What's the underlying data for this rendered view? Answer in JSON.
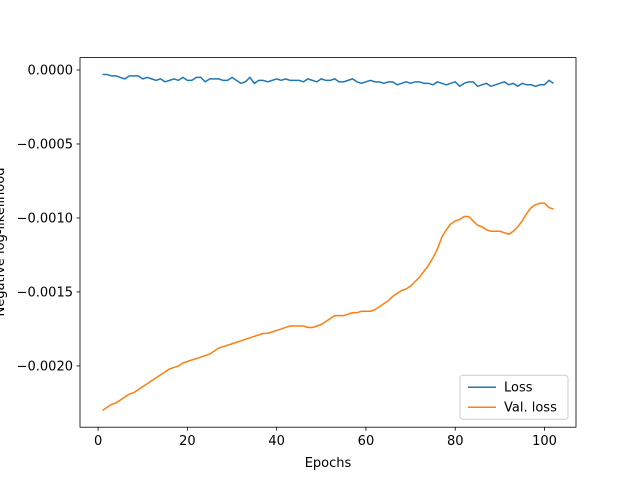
{
  "chart_data": {
    "type": "line",
    "xlabel": "Epochs",
    "ylabel": "Negative log-likelihood",
    "x": [
      1,
      2,
      3,
      4,
      5,
      6,
      7,
      8,
      9,
      10,
      11,
      12,
      13,
      14,
      15,
      16,
      17,
      18,
      19,
      20,
      21,
      22,
      23,
      24,
      25,
      26,
      27,
      28,
      29,
      30,
      31,
      32,
      33,
      34,
      35,
      36,
      37,
      38,
      39,
      40,
      41,
      42,
      43,
      44,
      45,
      46,
      47,
      48,
      49,
      50,
      51,
      52,
      53,
      54,
      55,
      56,
      57,
      58,
      59,
      60,
      61,
      62,
      63,
      64,
      65,
      66,
      67,
      68,
      69,
      70,
      71,
      72,
      73,
      74,
      75,
      76,
      77,
      78,
      79,
      80,
      81,
      82,
      83,
      84,
      85,
      86,
      87,
      88,
      89,
      90,
      91,
      92,
      93,
      94,
      95,
      96,
      97,
      98,
      99,
      100,
      101,
      102
    ],
    "series": [
      {
        "name": "Loss",
        "color": "#1f77b4",
        "values": [
          -3e-05,
          -3e-05,
          -4e-05,
          -4e-05,
          -5e-05,
          -6e-05,
          -4e-05,
          -4e-05,
          -4e-05,
          -6e-05,
          -5e-05,
          -6e-05,
          -7e-05,
          -6e-05,
          -8e-05,
          -7e-05,
          -6e-05,
          -7e-05,
          -5e-05,
          -7e-05,
          -7e-05,
          -5e-05,
          -5e-05,
          -8e-05,
          -6e-05,
          -6e-05,
          -6e-05,
          -7e-05,
          -7e-05,
          -5e-05,
          -7e-05,
          -9e-05,
          -8e-05,
          -5e-05,
          -9e-05,
          -7e-05,
          -7e-05,
          -8e-05,
          -7e-05,
          -6e-05,
          -7e-05,
          -6e-05,
          -7e-05,
          -7e-05,
          -7e-05,
          -8e-05,
          -6e-05,
          -7e-05,
          -8e-05,
          -6e-05,
          -7e-05,
          -7e-05,
          -6e-05,
          -8e-05,
          -8e-05,
          -7e-05,
          -6e-05,
          -8e-05,
          -9e-05,
          -8e-05,
          -7e-05,
          -8e-05,
          -8e-05,
          -9e-05,
          -8e-05,
          -8e-05,
          -0.0001,
          -9e-05,
          -8e-05,
          -9e-05,
          -8e-05,
          -8e-05,
          -9e-05,
          -9e-05,
          -0.0001,
          -8e-05,
          -9e-05,
          -0.0001,
          -9e-05,
          -8e-05,
          -0.00011,
          -9e-05,
          -8e-05,
          -8e-05,
          -0.00011,
          -0.0001,
          -9e-05,
          -0.00011,
          -0.0001,
          -9e-05,
          -8e-05,
          -0.0001,
          -9e-05,
          -0.00011,
          -9e-05,
          -0.0001,
          -0.0001,
          -0.00011,
          -0.0001,
          -0.0001,
          -7e-05,
          -9e-05
        ]
      },
      {
        "name": "Val. loss",
        "color": "#ff7f0e",
        "values": [
          -0.0023,
          -0.00228,
          -0.00226,
          -0.00225,
          -0.00223,
          -0.00221,
          -0.00219,
          -0.00218,
          -0.00216,
          -0.00214,
          -0.00212,
          -0.0021,
          -0.00208,
          -0.00206,
          -0.00204,
          -0.00202,
          -0.00201,
          -0.002,
          -0.00198,
          -0.00197,
          -0.00196,
          -0.00195,
          -0.00194,
          -0.00193,
          -0.00192,
          -0.0019,
          -0.00188,
          -0.00187,
          -0.00186,
          -0.00185,
          -0.00184,
          -0.00183,
          -0.00182,
          -0.00181,
          -0.0018,
          -0.00179,
          -0.00178,
          -0.00178,
          -0.00177,
          -0.00176,
          -0.00175,
          -0.00174,
          -0.00173,
          -0.00173,
          -0.00173,
          -0.00173,
          -0.00174,
          -0.00174,
          -0.00173,
          -0.00172,
          -0.0017,
          -0.00168,
          -0.00166,
          -0.00166,
          -0.00166,
          -0.00165,
          -0.00164,
          -0.00164,
          -0.00163,
          -0.00163,
          -0.00163,
          -0.00162,
          -0.0016,
          -0.00158,
          -0.00156,
          -0.00153,
          -0.00151,
          -0.00149,
          -0.00148,
          -0.00146,
          -0.00143,
          -0.0014,
          -0.00136,
          -0.00132,
          -0.00127,
          -0.00121,
          -0.00113,
          -0.00108,
          -0.00104,
          -0.00102,
          -0.00101,
          -0.00099,
          -0.00099,
          -0.00102,
          -0.00105,
          -0.00106,
          -0.00108,
          -0.00109,
          -0.00109,
          -0.00109,
          -0.0011,
          -0.00111,
          -0.00109,
          -0.00106,
          -0.00102,
          -0.00097,
          -0.00093,
          -0.00091,
          -0.0009,
          -0.0009,
          -0.00093,
          -0.00094
        ]
      }
    ],
    "xlim": [
      -4.05,
      107.05
    ],
    "xticks": [
      0,
      20,
      40,
      60,
      80,
      100
    ],
    "ylim": [
      -0.002414,
      8.38e-05
    ],
    "yticks": [
      {
        "value": 0,
        "label": "0.0000"
      },
      {
        "value": -0.0005,
        "label": "−0.0005"
      },
      {
        "value": -0.001,
        "label": "−0.0010"
      },
      {
        "value": -0.0015,
        "label": "−0.0015"
      },
      {
        "value": -0.002,
        "label": "−0.0020"
      }
    ],
    "legend": "lower right"
  }
}
